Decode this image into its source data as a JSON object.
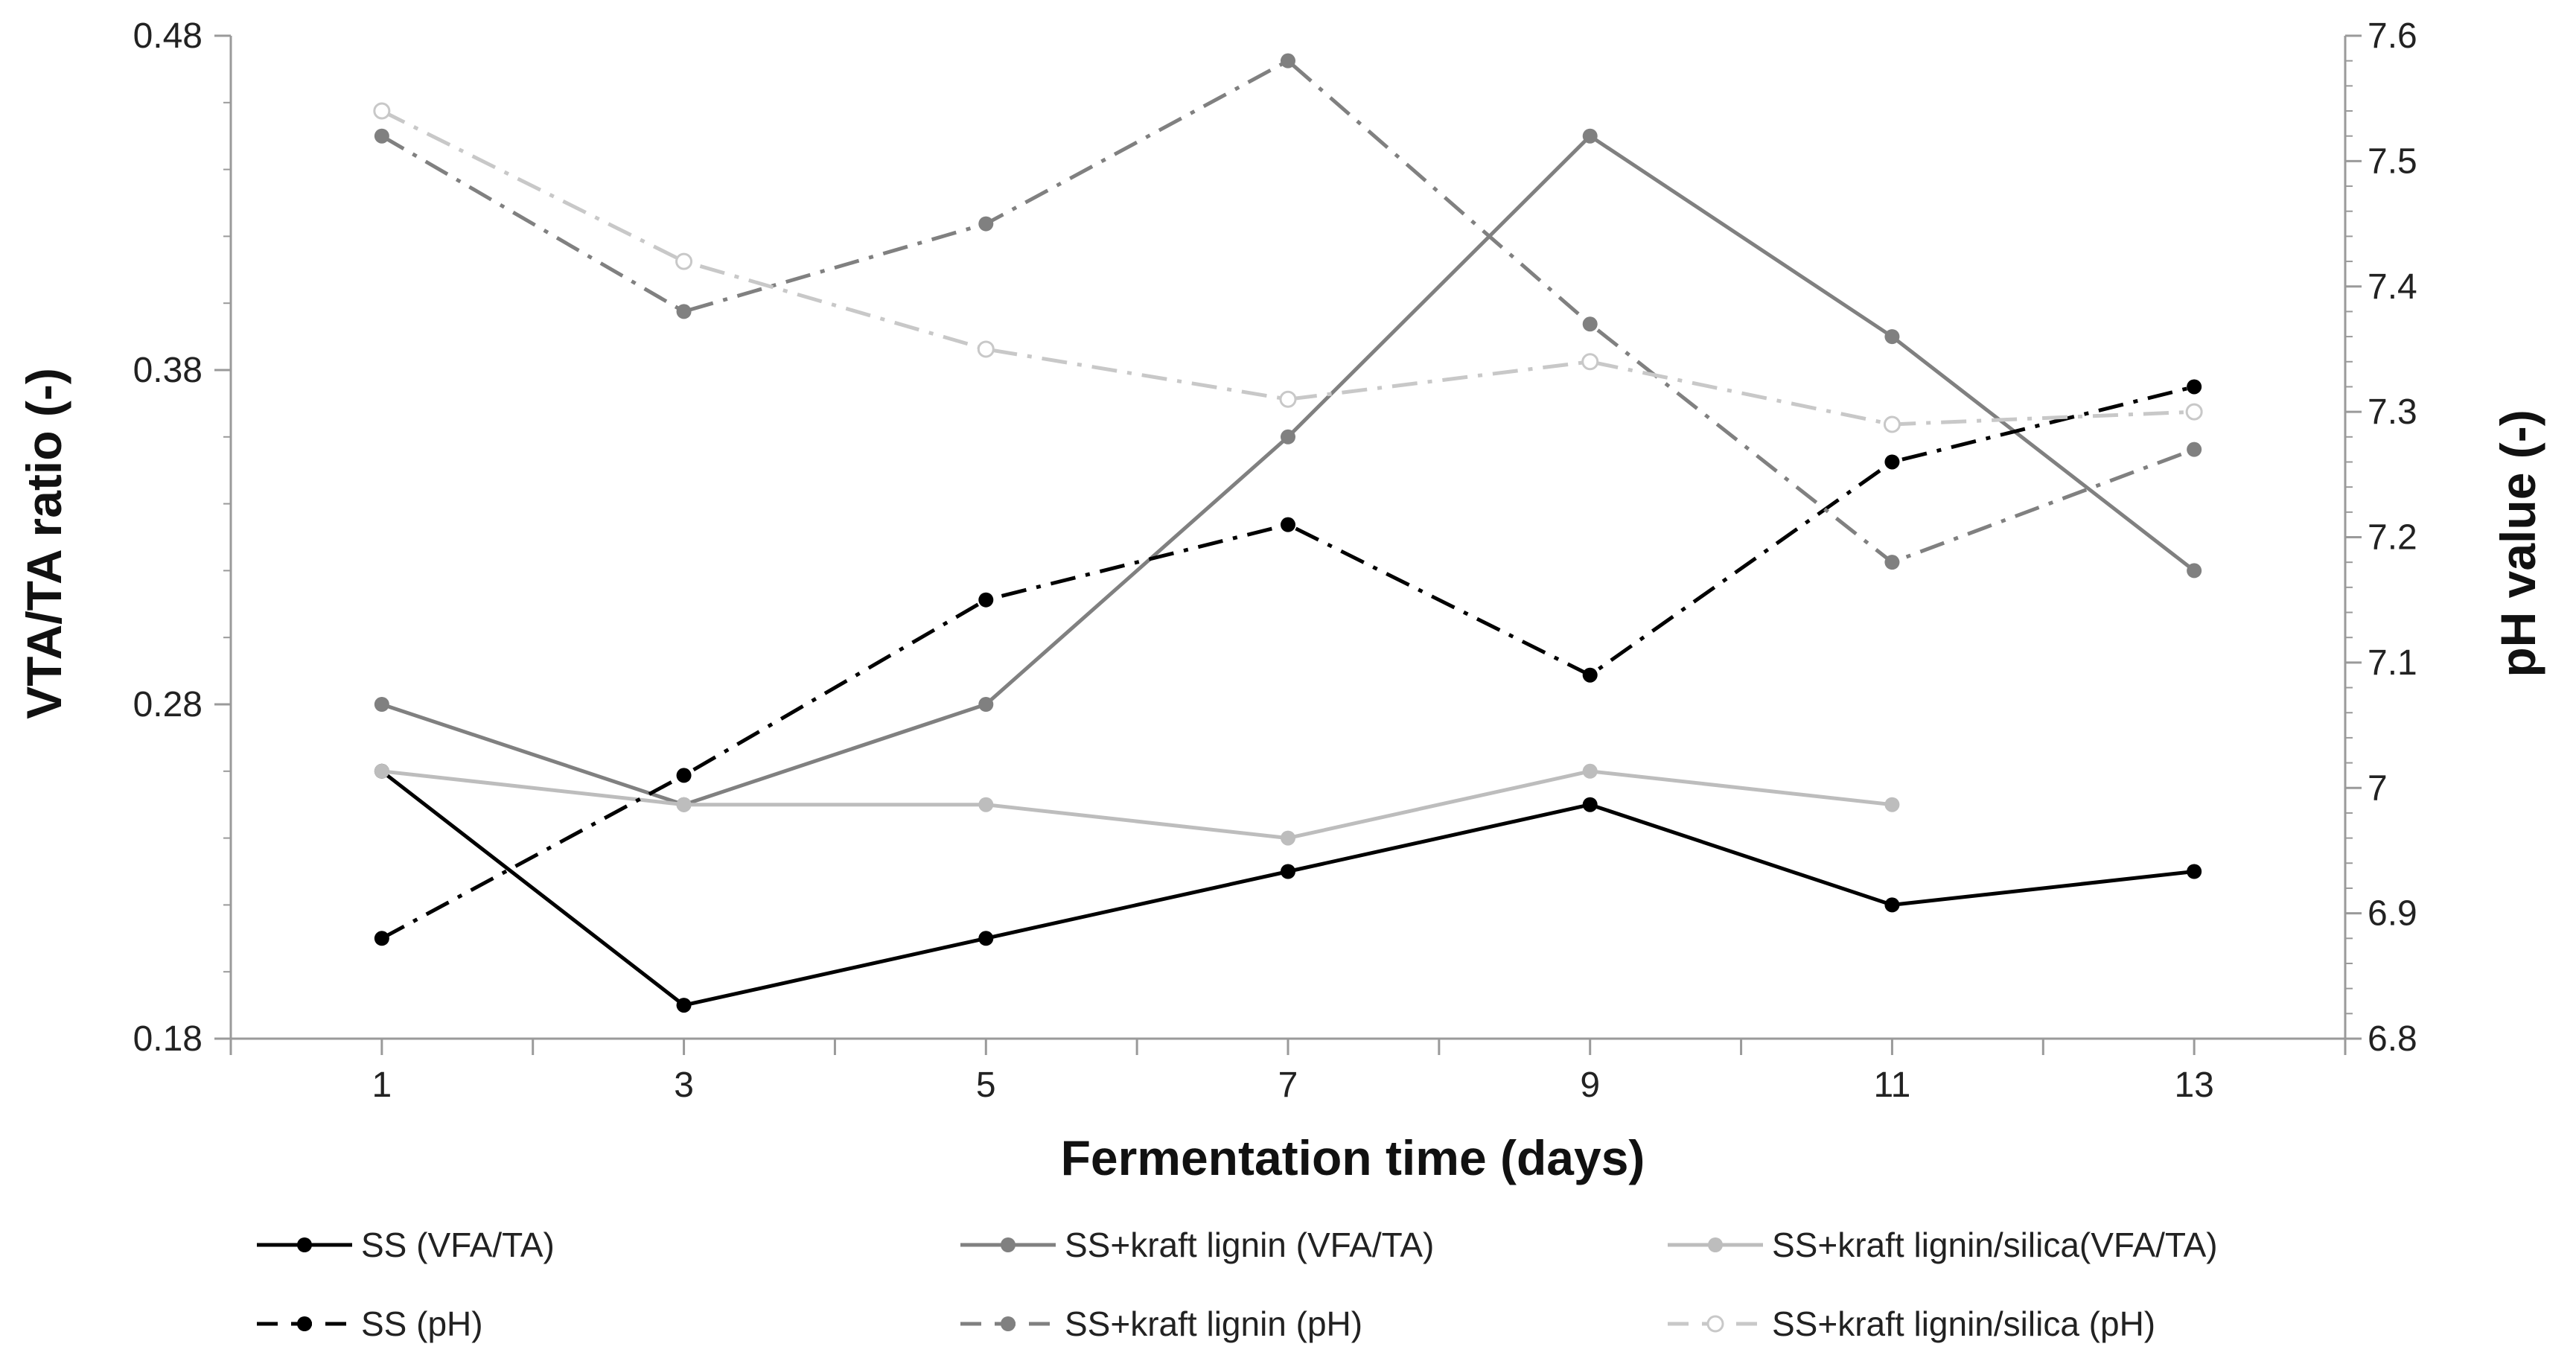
{
  "chart_data": {
    "type": "line",
    "title": "",
    "xlabel": "Fermentation time (days)",
    "ylabel_left": "VTA/TA ratio (-)",
    "ylabel_right": "pH value (-)",
    "x": [
      1,
      3,
      5,
      7,
      9,
      11,
      13
    ],
    "x_tick_labels": [
      "1",
      "3",
      "5",
      "7",
      "9",
      "11",
      "13"
    ],
    "xlim": [
      0,
      14
    ],
    "ylim_left": [
      0.18,
      0.48
    ],
    "ylim_right": [
      6.8,
      7.6
    ],
    "y_left_tick_labels": [
      "0.18",
      "0.28",
      "0.38",
      "0.48"
    ],
    "y_left_ticks": [
      0.18,
      0.28,
      0.38,
      0.48
    ],
    "y_right_tick_labels": [
      "6.8",
      "6.9",
      "7",
      "7.1",
      "7.2",
      "7.3",
      "7.4",
      "7.5",
      "7.6"
    ],
    "y_right_ticks": [
      6.8,
      6.9,
      7.0,
      7.1,
      7.2,
      7.3,
      7.4,
      7.5,
      7.6
    ],
    "grid": false,
    "legend_position": "bottom",
    "series": [
      {
        "name": "SS (VFA/TA)",
        "axis": "left",
        "style": "solid",
        "marker": "filled",
        "color": "#000000",
        "values": [
          0.26,
          0.19,
          0.21,
          0.23,
          0.25,
          0.22,
          0.23
        ]
      },
      {
        "name": "SS+kraft lignin (VFA/TA)",
        "axis": "left",
        "style": "solid",
        "marker": "filled",
        "color": "#808080",
        "values": [
          0.28,
          0.25,
          0.28,
          0.36,
          0.45,
          0.39,
          0.32
        ]
      },
      {
        "name": "SS+kraft lignin/silica(VFA/TA)",
        "axis": "left",
        "style": "solid",
        "marker": "filled",
        "color": "#bdbdbd",
        "values": [
          0.26,
          0.25,
          0.25,
          0.24,
          0.26,
          0.25,
          null
        ]
      },
      {
        "name": "SS (pH)",
        "axis": "right",
        "style": "dashdot",
        "marker": "filled",
        "color": "#000000",
        "values": [
          6.88,
          7.01,
          7.15,
          7.21,
          7.09,
          7.26,
          7.32
        ]
      },
      {
        "name": "SS+kraft lignin (pH)",
        "axis": "right",
        "style": "dashdot",
        "marker": "filled",
        "color": "#808080",
        "values": [
          7.52,
          7.38,
          7.45,
          7.58,
          7.37,
          7.18,
          7.27
        ]
      },
      {
        "name": "SS+kraft lignin/silica (pH)",
        "axis": "right",
        "style": "dashdot",
        "marker": "hollow",
        "color": "#c8c8c8",
        "values": [
          7.54,
          7.42,
          7.35,
          7.31,
          7.34,
          7.29,
          7.3
        ]
      }
    ]
  }
}
